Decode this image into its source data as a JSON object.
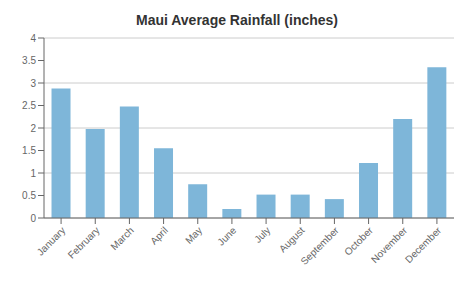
{
  "chart_data": {
    "type": "bar",
    "title": "Maui Average Rainfall (inches)",
    "categories": [
      "January",
      "February",
      "March",
      "April",
      "May",
      "June",
      "July",
      "August",
      "September",
      "October",
      "November",
      "December"
    ],
    "values": [
      2.88,
      1.98,
      2.48,
      1.55,
      0.75,
      0.2,
      0.52,
      0.52,
      0.42,
      1.22,
      2.2,
      3.35
    ],
    "color": "#7EB6D9",
    "ylim": [
      0,
      4
    ],
    "yticks": [
      0,
      0.5,
      1,
      1.5,
      2,
      2.5,
      3,
      3.5,
      4
    ],
    "grid": true
  }
}
